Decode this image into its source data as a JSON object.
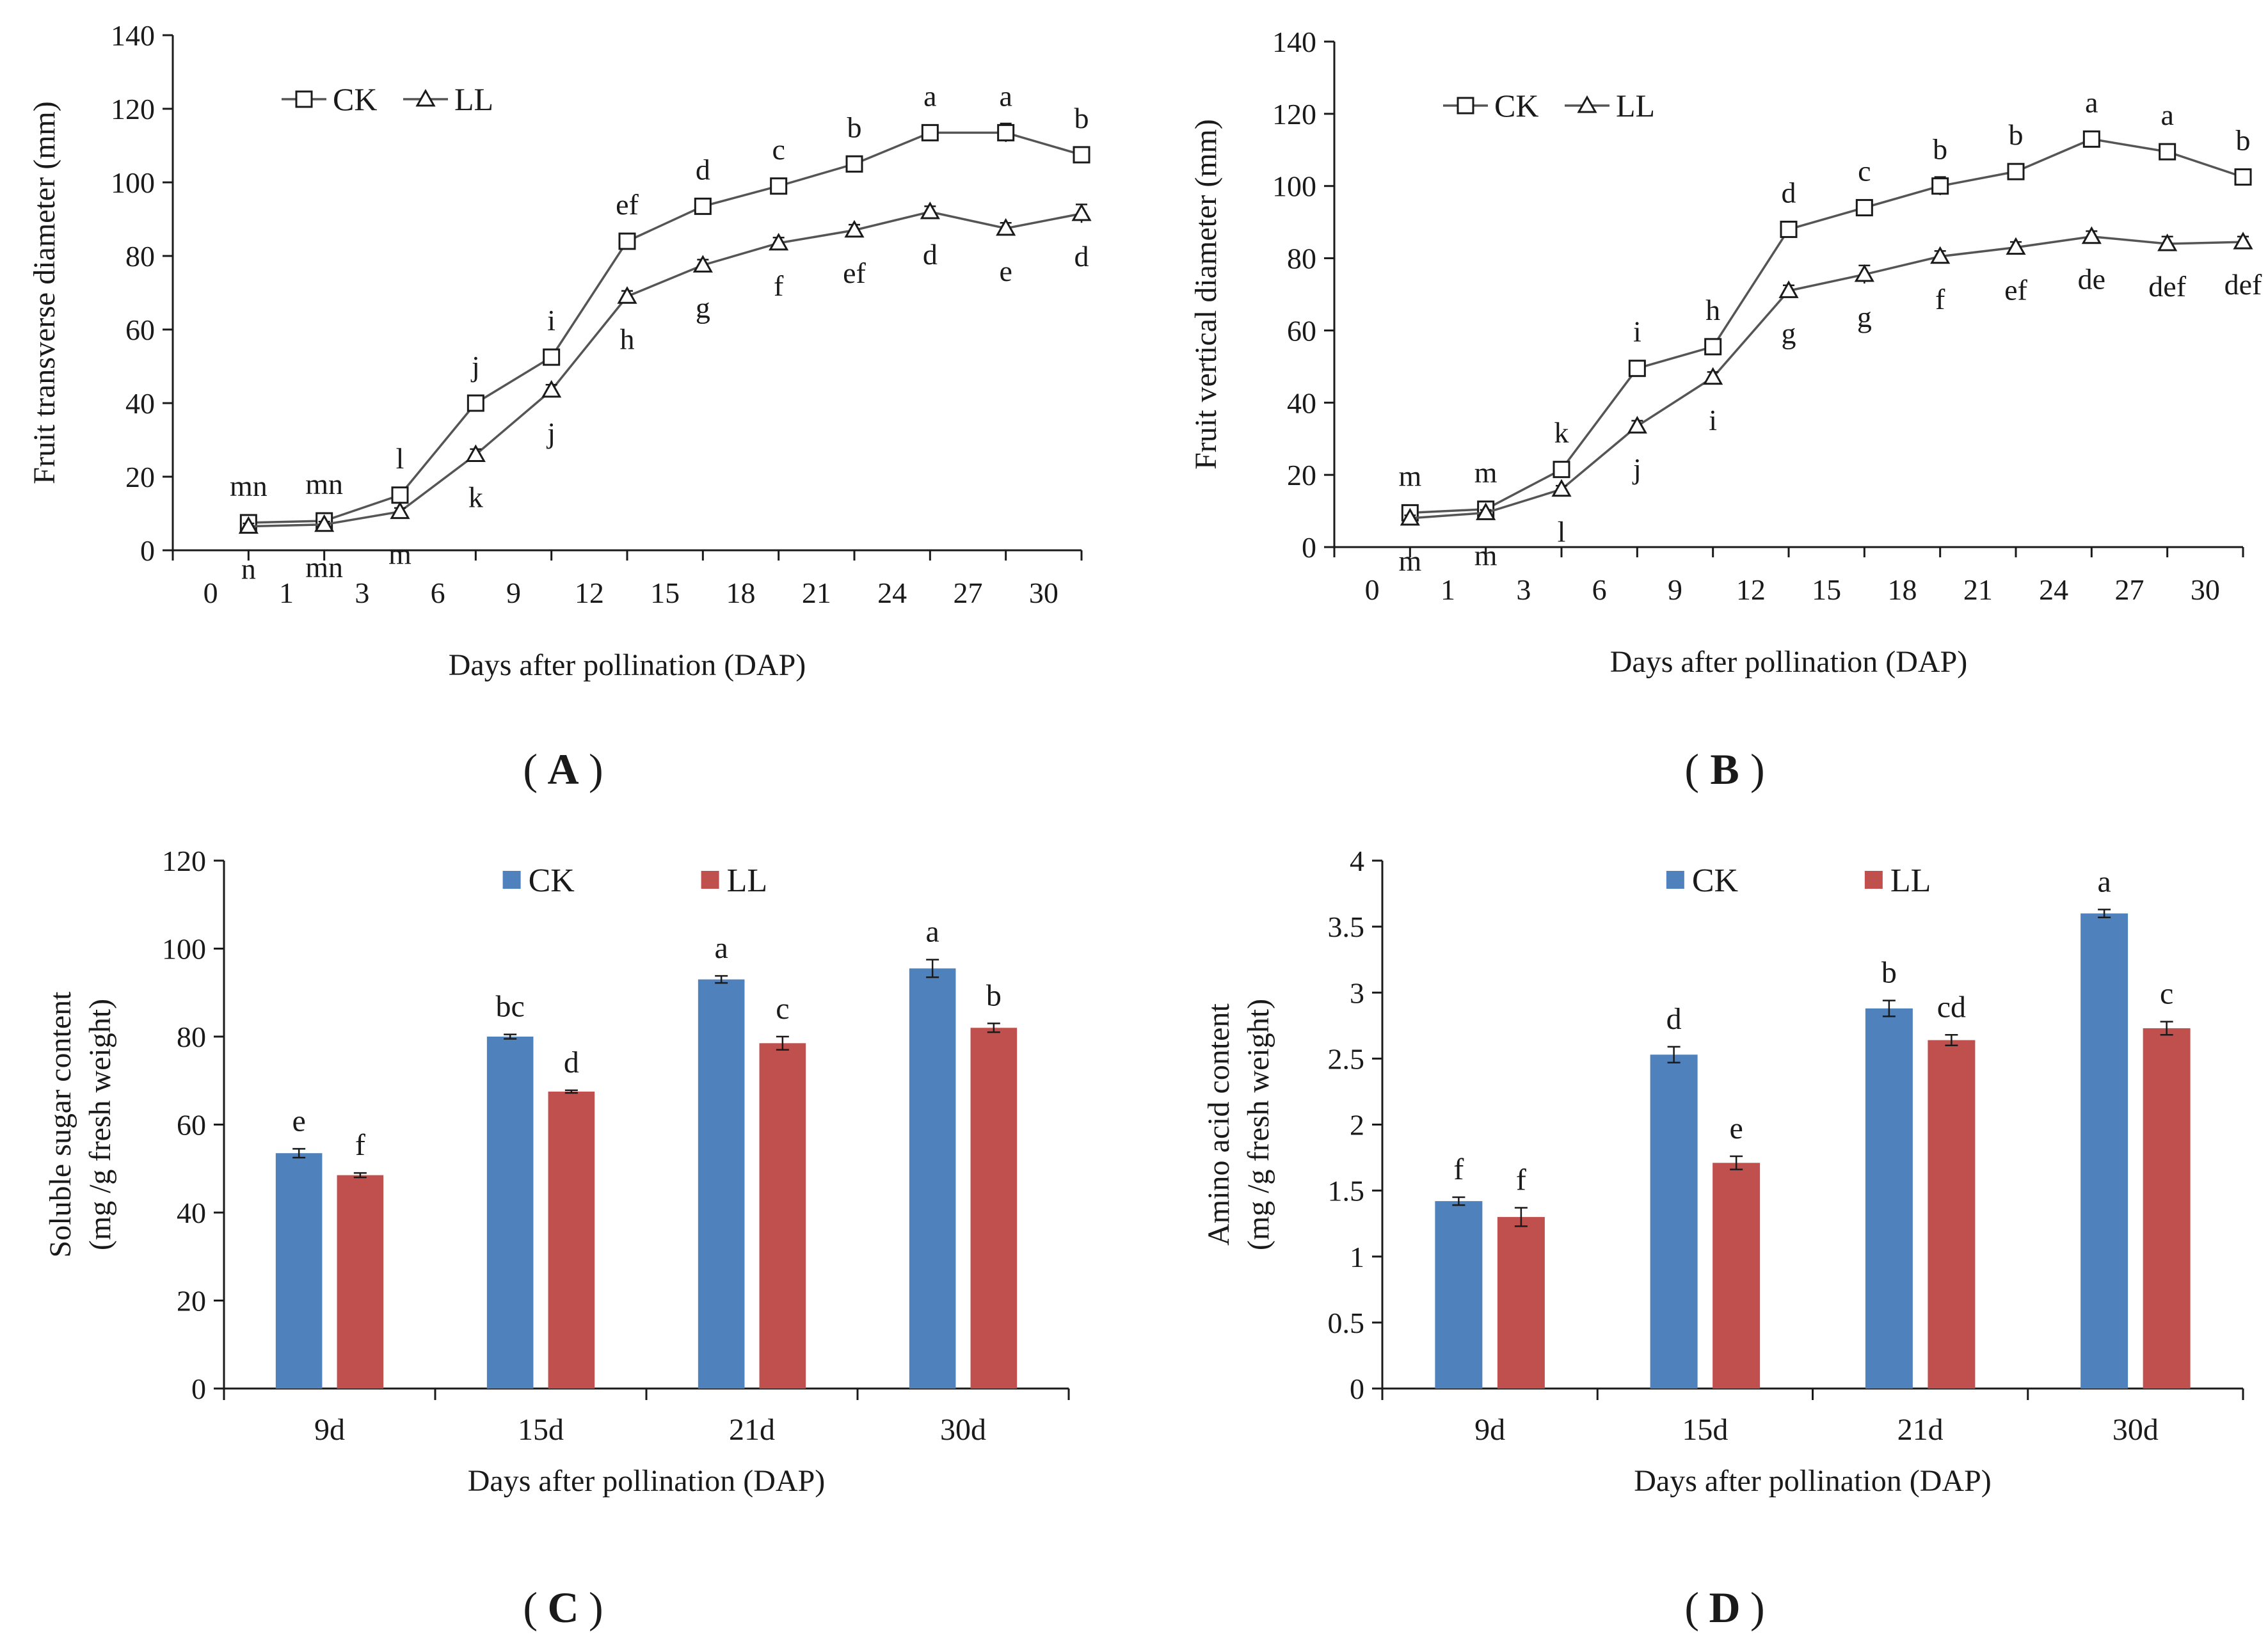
{
  "chart_data": [
    {
      "id": "A",
      "type": "line",
      "caption": "A",
      "ylabel": "Fruit transverse diameter (mm)",
      "xlabel": "Days after pollination (DAP)",
      "ylim": [
        0,
        140
      ],
      "yticks": [
        "0",
        "20",
        "40",
        "60",
        "80",
        "100",
        "120",
        "140"
      ],
      "xtick_labels": [
        "0",
        "1",
        "3",
        "6",
        "9",
        "12",
        "15",
        "18",
        "21",
        "24",
        "27",
        "30"
      ],
      "legend_position": "top-left",
      "series": [
        {
          "name": "CK",
          "marker": "square",
          "values": [
            7.5,
            8,
            15,
            40,
            52.5,
            84,
            93.5,
            99,
            105,
            113.5,
            113.5,
            107.5
          ],
          "errors": [
            0.8,
            0.8,
            1,
            1.5,
            1.5,
            1.5,
            1.5,
            1.5,
            1.5,
            1.5,
            2.5,
            2
          ],
          "letters": [
            "mn",
            "mn",
            "l",
            "j",
            "i",
            "ef",
            "d",
            "c",
            "b",
            "a",
            "a",
            "b"
          ],
          "letter_pos": "above"
        },
        {
          "name": "LL",
          "marker": "triangle",
          "values": [
            6.5,
            7,
            10.5,
            26,
            43.5,
            69,
            77.5,
            83.5,
            87,
            92,
            87.5,
            91.5
          ],
          "errors": [
            0.8,
            0.8,
            1,
            1.5,
            1.5,
            1.5,
            1.5,
            1.5,
            1.5,
            1.5,
            1.5,
            2.5
          ],
          "letters": [
            "n",
            "mn",
            "m",
            "k",
            "j",
            "h",
            "g",
            "f",
            "ef",
            "d",
            "e",
            "d"
          ],
          "letter_pos": "below"
        }
      ]
    },
    {
      "id": "B",
      "type": "line",
      "caption": "B",
      "ylabel": "Fruit vertical diameter (mm)",
      "xlabel": "Days after pollination (DAP)",
      "ylim": [
        0,
        140
      ],
      "yticks": [
        "0",
        "20",
        "40",
        "60",
        "80",
        "100",
        "120",
        "140"
      ],
      "xtick_labels": [
        "0",
        "1",
        "3",
        "6",
        "9",
        "12",
        "15",
        "18",
        "21",
        "24",
        "27",
        "30"
      ],
      "legend_position": "top-left",
      "series": [
        {
          "name": "CK",
          "marker": "square",
          "values": [
            9.5,
            10.5,
            21.5,
            49.5,
            55.5,
            88,
            94,
            100,
            104,
            113,
            109.5,
            102.5
          ],
          "errors": [
            0.8,
            0.8,
            1,
            1.5,
            1.5,
            1.5,
            1.5,
            2.5,
            1.5,
            1.5,
            1.5,
            1.5
          ],
          "letters": [
            "m",
            "m",
            "k",
            "i",
            "h",
            "d",
            "c",
            "b",
            "b",
            "a",
            "a",
            "b"
          ],
          "letter_pos": "above"
        },
        {
          "name": "LL",
          "marker": "triangle",
          "values": [
            8,
            9.5,
            16,
            33.5,
            47,
            71,
            75.5,
            80.5,
            83,
            86,
            84,
            84.5
          ],
          "errors": [
            0.8,
            0.8,
            1,
            1.5,
            1.5,
            1.5,
            2.5,
            1.5,
            1.5,
            1.5,
            2,
            1.5
          ],
          "letters": [
            "m",
            "m",
            "l",
            "j",
            "i",
            "g",
            "g",
            "f",
            "ef",
            "de",
            "def",
            "def"
          ],
          "letter_pos": "below"
        }
      ]
    },
    {
      "id": "C",
      "type": "bar",
      "caption": "C",
      "ylabel": [
        "Soluble sugar content",
        "(mg /g fresh weight)"
      ],
      "xlabel": "Days after pollination (DAP)",
      "ylim": [
        0,
        120
      ],
      "yticks": [
        "0",
        "20",
        "40",
        "60",
        "80",
        "100",
        "120"
      ],
      "categories": [
        "9d",
        "15d",
        "21d",
        "30d"
      ],
      "legend_position": "top-center",
      "series": [
        {
          "name": "CK",
          "color": "#4f81bd",
          "values": [
            53.5,
            80,
            93,
            95.5
          ],
          "errors": [
            1,
            0.5,
            0.8,
            2
          ],
          "letters": [
            "e",
            "bc",
            "a",
            "a"
          ]
        },
        {
          "name": "LL",
          "color": "#c0504d",
          "values": [
            48.5,
            67.5,
            78.5,
            82
          ],
          "errors": [
            0.5,
            0.3,
            1.5,
            1
          ],
          "letters": [
            "f",
            "d",
            "c",
            "b"
          ]
        }
      ]
    },
    {
      "id": "D",
      "type": "bar",
      "caption": "D",
      "ylabel": [
        "Amino acid content",
        "(mg /g fresh weight)"
      ],
      "xlabel": "Days after pollination (DAP)",
      "ylim": [
        0,
        4
      ],
      "yticks": [
        "0",
        "0.5",
        "1",
        "1.5",
        "2",
        "2.5",
        "3",
        "3.5",
        "4"
      ],
      "categories": [
        "9d",
        "15d",
        "21d",
        "30d"
      ],
      "legend_position": "top-center",
      "series": [
        {
          "name": "CK",
          "color": "#4f81bd",
          "values": [
            1.42,
            2.53,
            2.88,
            3.6
          ],
          "errors": [
            0.03,
            0.06,
            0.06,
            0.03
          ],
          "letters": [
            "f",
            "d",
            "b",
            "a"
          ]
        },
        {
          "name": "LL",
          "color": "#c0504d",
          "values": [
            1.3,
            1.71,
            2.64,
            2.73
          ],
          "errors": [
            0.07,
            0.05,
            0.04,
            0.05
          ],
          "letters": [
            "f",
            "e",
            "cd",
            "c"
          ]
        }
      ]
    }
  ],
  "colors": {
    "axis": "#1a1a1a",
    "ck_bar": "#4f81bd",
    "ll_bar": "#c0504d",
    "line": "#555555"
  }
}
